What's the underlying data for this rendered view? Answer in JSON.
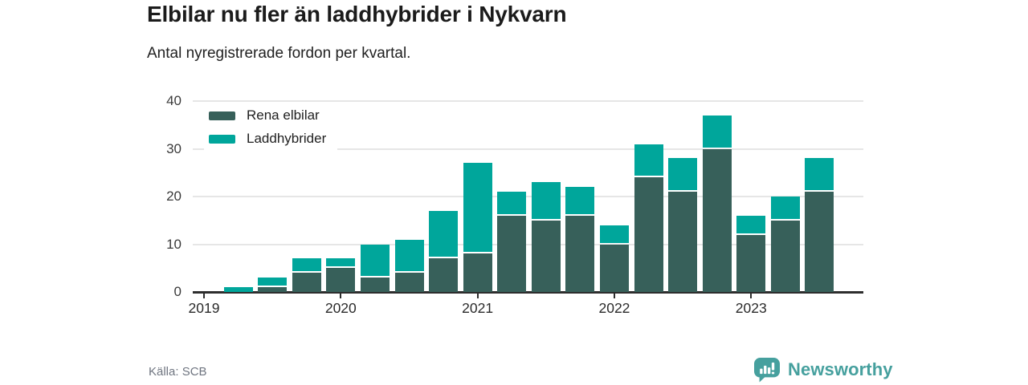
{
  "header": {
    "title": "Elbilar nu fler än laddhybrider i Nykvarn",
    "subtitle": "Antal nyregistrerade fordon per kvartal."
  },
  "chart_data": {
    "type": "bar",
    "stacked": true,
    "title": "Elbilar nu fler än laddhybrider i Nykvarn",
    "subtitle": "Antal nyregistrerade fordon per kvartal.",
    "categories": [
      "2019 Q2",
      "2019 Q3",
      "2019 Q4",
      "2020 Q1",
      "2020 Q2",
      "2020 Q3",
      "2020 Q4",
      "2021 Q1",
      "2021 Q2",
      "2021 Q3",
      "2021 Q4",
      "2022 Q1",
      "2022 Q2",
      "2022 Q3",
      "2022 Q4",
      "2023 Q1",
      "2023 Q2",
      "2023 Q3"
    ],
    "series": [
      {
        "name": "Rena elbilar",
        "color": "#37605a",
        "values": [
          0,
          1,
          4,
          5,
          3,
          4,
          7,
          8,
          16,
          15,
          16,
          10,
          24,
          21,
          30,
          12,
          15,
          21
        ]
      },
      {
        "name": "Laddhybrider",
        "color": "#00a69b",
        "values": [
          1,
          2,
          3,
          2,
          7,
          7,
          10,
          19,
          5,
          8,
          6,
          4,
          7,
          7,
          7,
          4,
          5,
          7
        ]
      }
    ],
    "x_tick_labels": [
      "2019",
      "2020",
      "2021",
      "2022",
      "2023"
    ],
    "y_ticks": [
      0,
      10,
      20,
      30,
      40
    ],
    "ylim": [
      0,
      40
    ],
    "xlabel": "",
    "ylabel": "",
    "grid": "horizontal",
    "legend_position": "top-left",
    "separator_color": "#ffffff"
  },
  "footer": {
    "source": "Källa: SCB",
    "brand": "Newsworthy",
    "brand_color": "#46a09e"
  }
}
